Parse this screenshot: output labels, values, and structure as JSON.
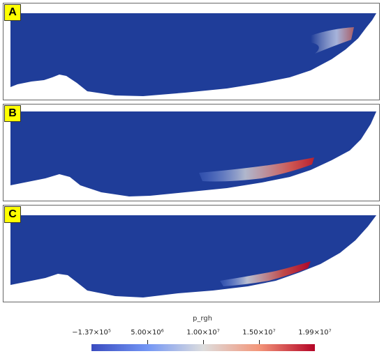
{
  "panels": [
    {
      "id": "a",
      "label": "A"
    },
    {
      "id": "b",
      "label": "B"
    },
    {
      "id": "c",
      "label": "C"
    }
  ],
  "colorbar": {
    "title": "p_rgh",
    "ticks": [
      "−1.37×10⁵",
      "5.00×10⁶",
      "1.00×10⁷",
      "1.50×10⁷",
      "1.99×10⁷"
    ],
    "range": [
      -137000,
      19900000
    ],
    "colormap": [
      "#3a4cc0",
      "#7396f5",
      "#dddddd",
      "#f3967a",
      "#b40426"
    ]
  },
  "colors": {
    "background_field": "#1f3d99",
    "highlight_high": "#c0202b"
  }
}
